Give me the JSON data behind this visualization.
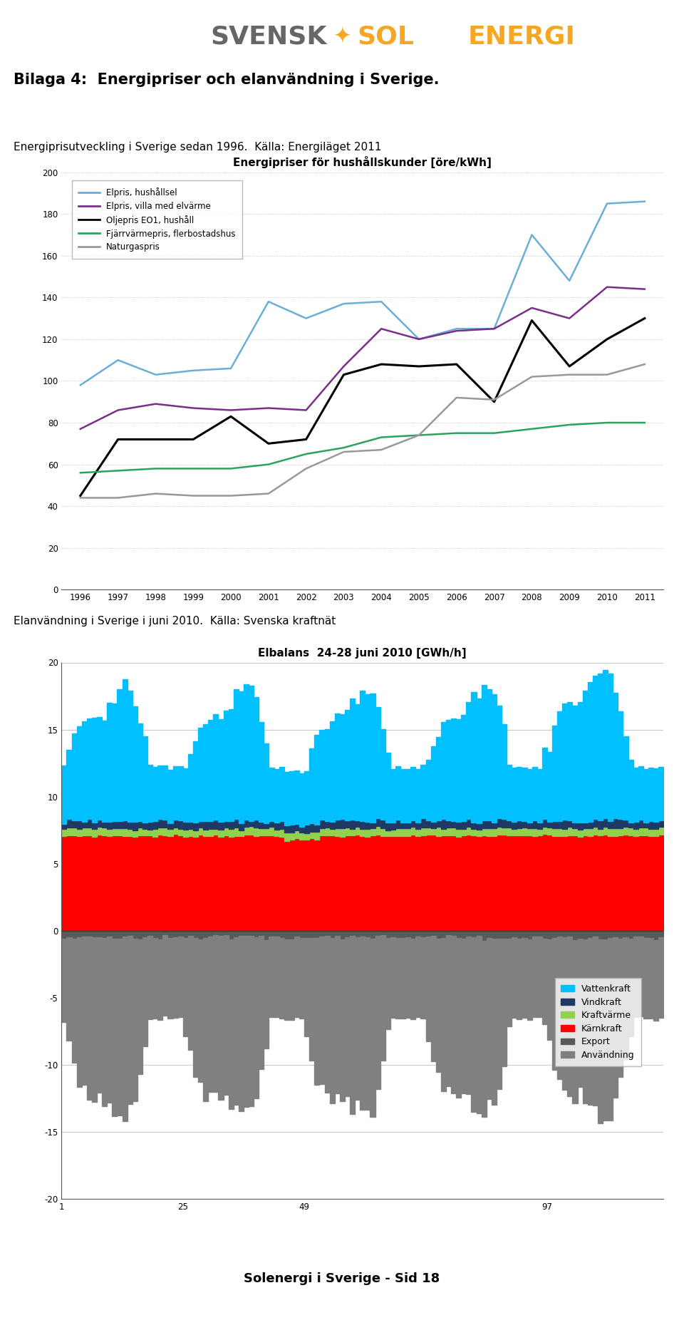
{
  "title1": "Energipriser för hushållskunder [öre/kWh]",
  "chart1_years": [
    1996,
    1997,
    1998,
    1999,
    2000,
    2001,
    2002,
    2003,
    2004,
    2005,
    2006,
    2007,
    2008,
    2009,
    2010,
    2011
  ],
  "elpris_hushall": [
    98,
    110,
    103,
    105,
    106,
    138,
    130,
    137,
    138,
    120,
    125,
    125,
    170,
    148,
    185,
    186
  ],
  "elpris_villa": [
    77,
    86,
    89,
    87,
    86,
    87,
    86,
    107,
    125,
    120,
    124,
    125,
    135,
    130,
    145,
    144
  ],
  "oljepris_eo1": [
    45,
    72,
    72,
    72,
    83,
    70,
    72,
    103,
    108,
    107,
    108,
    90,
    129,
    107,
    120,
    130
  ],
  "fjarrvarme": [
    56,
    57,
    58,
    58,
    58,
    60,
    65,
    68,
    73,
    74,
    75,
    75,
    77,
    79,
    80,
    80
  ],
  "naturgaspris": [
    44,
    44,
    46,
    45,
    45,
    46,
    58,
    66,
    67,
    74,
    92,
    91,
    102,
    103,
    103,
    108
  ],
  "line_colors": [
    "#6baed6",
    "#7b2d8b",
    "#000000",
    "#2ca25f",
    "#999999"
  ],
  "line_labels": [
    "Elpris, hushållsel",
    "Elpris, villa med elvärme",
    "Oljepris EO1, hushåll",
    "Fjärrvärmepris, flerbostadshus",
    "Naturgaspris"
  ],
  "chart1_ylim": [
    0,
    200
  ],
  "chart1_yticks": [
    0,
    20,
    40,
    60,
    80,
    100,
    120,
    140,
    160,
    180,
    200
  ],
  "title2": "Elbalans  24-28 juni 2010 [GWh/h]",
  "chart2_ylim": [
    -20,
    20
  ],
  "chart2_yticks": [
    -20,
    -15,
    -10,
    -5,
    0,
    5,
    10,
    15,
    20
  ],
  "chart2_xticks": [
    1,
    25,
    49,
    97
  ],
  "vattenkraft_color": "#00bfff",
  "vindkraft_color": "#1f3864",
  "kraftvarme_color": "#92d050",
  "karnkraft_color": "#ff0000",
  "export_color": "#595959",
  "anvandning_color": "#808080",
  "heading1": "Bilaga 4:  Energipriser och elanvändning i Sverige.",
  "subheading1": "Energiprisutveckling i Sverige sedan 1996.  Källa: Energiläget 2011",
  "subheading2": "Elanvändning i Sverige i juni 2010.  Källa: Svenska kraftnät",
  "footer": "Solenergi i Sverige - Sid 18",
  "svensk_color": "#666666",
  "sol_color": "#f5a623",
  "energi_color": "#f5a623"
}
